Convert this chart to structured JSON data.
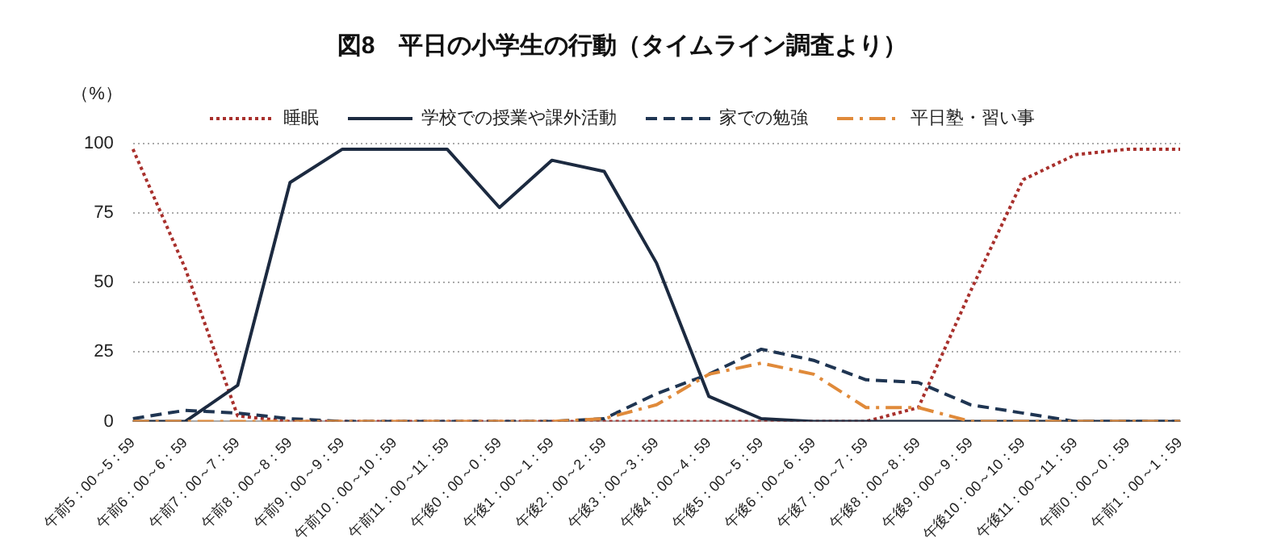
{
  "chart_data": {
    "type": "line",
    "title": "図8　平日の小学生の行動（タイムライン調査より）",
    "ylabel": "（%）",
    "categories": [
      "午前5：00～5：59",
      "午前6：00～6：59",
      "午前7：00～7：59",
      "午前8：00～8：59",
      "午前9：00～9：59",
      "午前10：00～10：59",
      "午前11：00～11：59",
      "午後0：00～0：59",
      "午後1：00～1：59",
      "午後2：00～2：59",
      "午後3：00～3：59",
      "午後4：00～4：59",
      "午後5：00～5：59",
      "午後6：00～6：59",
      "午後7：00～7：59",
      "午後8：00～8：59",
      "午後9：00～9：59",
      "午後10：00～10：59",
      "午後11：00～11：59",
      "午前0：00～0：59",
      "午前1：00～1：59"
    ],
    "series": [
      {
        "name": "睡眠",
        "color": "#a8302c",
        "line_style": "dotted",
        "values": [
          98,
          55,
          2,
          0,
          0,
          0,
          0,
          0,
          0,
          0,
          0,
          0,
          0,
          0,
          0,
          5,
          47,
          87,
          96,
          98,
          98
        ]
      },
      {
        "name": "学校での授業や課外活動",
        "color": "#1c2a40",
        "line_style": "solid",
        "values": [
          0,
          0,
          13,
          86,
          98,
          98,
          98,
          77,
          94,
          90,
          57,
          9,
          1,
          0,
          0,
          0,
          0,
          0,
          0,
          0,
          0
        ]
      },
      {
        "name": "家での勉強",
        "color": "#1f3552",
        "line_style": "dashed",
        "values": [
          1,
          4,
          3,
          1,
          0,
          0,
          0,
          0,
          0,
          1,
          10,
          17,
          26,
          22,
          15,
          14,
          6,
          3,
          0,
          0,
          0
        ]
      },
      {
        "name": "平日塾・習い事",
        "color": "#e08a3a",
        "line_style": "dashdot",
        "values": [
          0,
          0,
          0,
          0,
          0,
          0,
          0,
          0,
          0,
          1,
          6,
          17,
          21,
          17,
          5,
          5,
          0,
          0,
          0,
          0,
          0
        ]
      }
    ],
    "ylim": [
      0,
      100
    ],
    "yticks": [
      0,
      25,
      50,
      75,
      100
    ],
    "grid": "y",
    "legend": "top",
    "marker": "none"
  }
}
